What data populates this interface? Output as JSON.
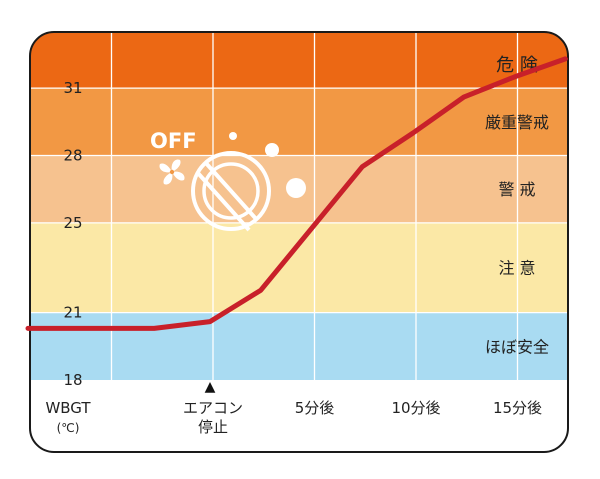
{
  "chart_data": {
    "type": "line",
    "title": "",
    "xlabel": "",
    "ylabel_line1": "WBGT",
    "ylabel_line2": "(℃)",
    "categories": [
      "",
      "エアコン停止",
      "5分後",
      "10分後",
      "15分後"
    ],
    "category_lines": [
      [
        "WBGT",
        "(℃)"
      ],
      [
        "エアコン",
        "停止"
      ],
      [
        "5分後"
      ],
      [
        "10分後"
      ],
      [
        "15分後"
      ]
    ],
    "x": [
      -1.0,
      -0.55,
      0.0,
      0.5,
      1.5,
      2.0,
      2.5,
      3.0,
      3.5
    ],
    "y": [
      20.3,
      20.3,
      20.6,
      22.0,
      27.5,
      29.0,
      30.6,
      31.5,
      32.3
    ],
    "ylim": [
      18,
      33.5
    ],
    "xlim": [
      -1.0,
      3.55
    ],
    "yticks": [
      18,
      21,
      25,
      28,
      31
    ],
    "zones": [
      {
        "label": "ほぼ安全",
        "from": 18,
        "to": 21,
        "color": "#a9dbf2"
      },
      {
        "label": "注 意",
        "from": 21,
        "to": 25,
        "color": "#fbe8a6"
      },
      {
        "label": "警 戒",
        "from": 25,
        "to": 28,
        "color": "#f6c28f"
      },
      {
        "label": "厳重警戒",
        "from": 28,
        "to": 31,
        "color": "#f29844"
      },
      {
        "label": "危 険",
        "from": 31,
        "to": 33.5,
        "color": "#ec6814"
      }
    ],
    "line_color": "#c8202a",
    "grid": true,
    "marker": "▲",
    "icon": {
      "name": "fan-off-icon",
      "text": "OFF"
    }
  }
}
